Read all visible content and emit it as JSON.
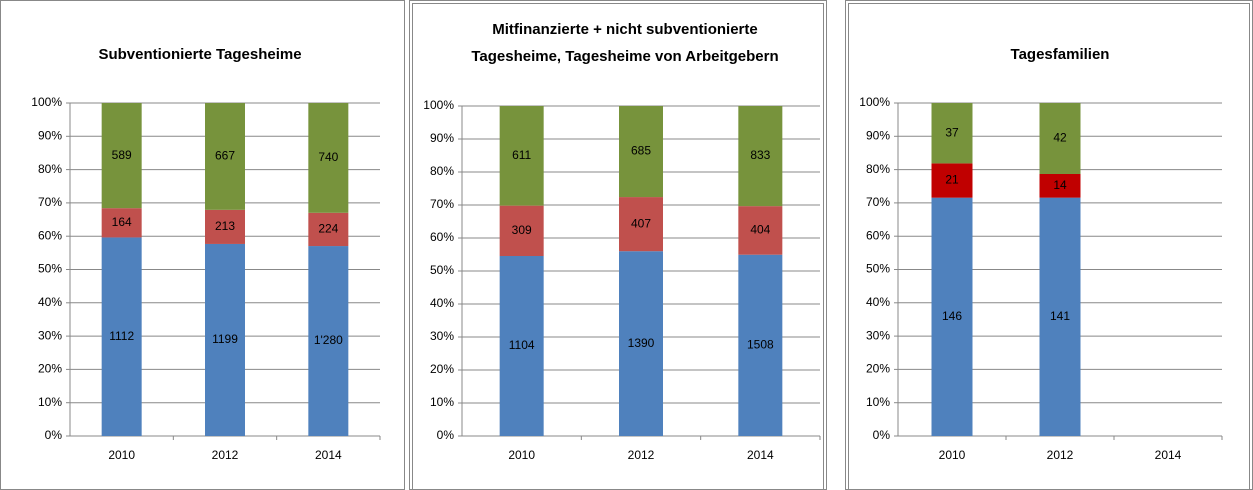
{
  "chart_data": [
    {
      "type": "bar",
      "stacked": "percent",
      "title": [
        "Subventionierte Tagesheime"
      ],
      "categories": [
        "2010",
        "2012",
        "2014"
      ],
      "series": [
        {
          "color": "#4f81bd",
          "values": [
            1112,
            1199,
            1280
          ],
          "value_labels": [
            "1112",
            "1199",
            "1'280"
          ]
        },
        {
          "color": "#c0504d",
          "values": [
            164,
            213,
            224
          ]
        },
        {
          "color": "#77933c",
          "values": [
            589,
            667,
            740
          ]
        }
      ],
      "ylim": [
        0,
        100
      ],
      "yticks": [
        {
          "value": 0,
          "label": "0%"
        },
        {
          "value": 10,
          "label": "10%"
        },
        {
          "value": 20,
          "label": "20%"
        },
        {
          "value": 30,
          "label": "30%"
        },
        {
          "value": 40,
          "label": "40%"
        },
        {
          "value": 50,
          "label": "50%"
        },
        {
          "value": 60,
          "label": "60%"
        },
        {
          "value": 70,
          "label": "70%"
        },
        {
          "value": 80,
          "label": "80%"
        },
        {
          "value": 90,
          "label": "90%"
        },
        {
          "value": 100,
          "label": "100%"
        }
      ],
      "grid": true
    },
    {
      "type": "bar",
      "stacked": "percent",
      "title": [
        "Mitfinanzierte  + nicht subventionierte",
        "Tagesheime, Tagesheime von Arbeitgebern"
      ],
      "categories": [
        "2010",
        "2012",
        "2014"
      ],
      "series": [
        {
          "color": "#4f81bd",
          "values": [
            1104,
            1390,
            1508
          ]
        },
        {
          "color": "#c0504d",
          "values": [
            309,
            407,
            404
          ]
        },
        {
          "color": "#77933c",
          "values": [
            611,
            685,
            833
          ]
        }
      ],
      "ylim": [
        0,
        100
      ],
      "yticks": [
        {
          "value": 0,
          "label": "0%"
        },
        {
          "value": 10,
          "label": "10%"
        },
        {
          "value": 20,
          "label": "20%"
        },
        {
          "value": 30,
          "label": "30%"
        },
        {
          "value": 40,
          "label": "40%"
        },
        {
          "value": 50,
          "label": "50%"
        },
        {
          "value": 60,
          "label": "60%"
        },
        {
          "value": 70,
          "label": "70%"
        },
        {
          "value": 80,
          "label": "80%"
        },
        {
          "value": 90,
          "label": "90%"
        },
        {
          "value": 100,
          "label": "100%"
        }
      ],
      "grid": true
    },
    {
      "type": "bar",
      "stacked": "percent",
      "title": [
        "Tagesfamilien"
      ],
      "categories": [
        "2010",
        "2012",
        "2014"
      ],
      "series": [
        {
          "color": "#4f81bd",
          "values": [
            146,
            141,
            null
          ]
        },
        {
          "color": "#c00000",
          "values": [
            21,
            14,
            null
          ]
        },
        {
          "color": "#77933c",
          "values": [
            37,
            42,
            null
          ]
        }
      ],
      "ylim": [
        0,
        100
      ],
      "yticks": [
        {
          "value": 0,
          "label": "0%"
        },
        {
          "value": 10,
          "label": "10%"
        },
        {
          "value": 20,
          "label": "20%"
        },
        {
          "value": 30,
          "label": "30%"
        },
        {
          "value": 40,
          "label": "40%"
        },
        {
          "value": 50,
          "label": "50%"
        },
        {
          "value": 60,
          "label": "60%"
        },
        {
          "value": 70,
          "label": "70%"
        },
        {
          "value": 80,
          "label": "80%"
        },
        {
          "value": 90,
          "label": "90%"
        },
        {
          "value": 100,
          "label": "100%"
        }
      ],
      "grid": true
    }
  ]
}
